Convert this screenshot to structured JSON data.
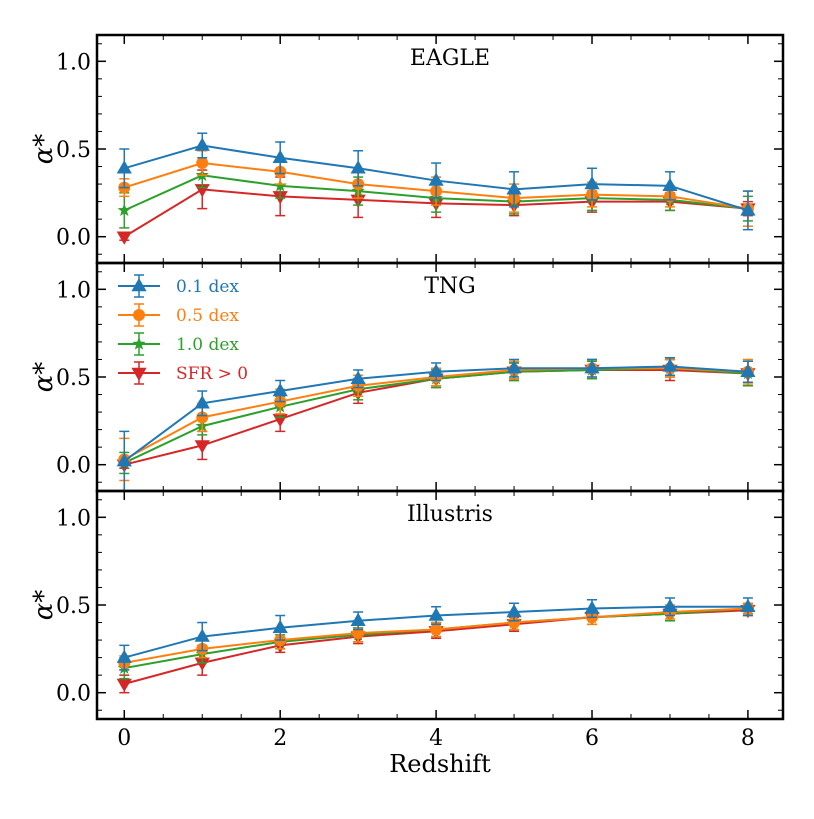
{
  "chart_data": {
    "type": "line",
    "xlabel": "Redshift",
    "ylabel": "α*",
    "xlim": [
      -0.35,
      8.45
    ],
    "x": [
      0,
      1,
      2,
      3,
      4,
      5,
      6,
      7,
      8
    ],
    "xticks": [
      0,
      2,
      4,
      6,
      8
    ],
    "xtick_labels": [
      "0",
      "2",
      "4",
      "6",
      "8"
    ],
    "yticks": [
      0.0,
      0.5,
      1.0
    ],
    "ytick_labels": [
      "0.0",
      "0.5",
      "1.0"
    ],
    "legend": {
      "placement": "upper-left of middle panel"
    },
    "series_styles": [
      {
        "name": "0.1 dex",
        "color": "#1f77b4",
        "marker": "triangle-up"
      },
      {
        "name": "0.5 dex",
        "color": "#ff7f0e",
        "marker": "circle"
      },
      {
        "name": "1.0 dex",
        "color": "#2ca02c",
        "marker": "star"
      },
      {
        "name": "SFR > 0",
        "color": "#d62728",
        "marker": "triangle-down"
      }
    ],
    "panels": [
      {
        "title": "EAGLE",
        "ylim": [
          -0.15,
          1.15
        ],
        "series": [
          {
            "name": "0.1 dex",
            "values": [
              0.39,
              0.52,
              0.45,
              0.39,
              0.32,
              0.27,
              0.3,
              0.29,
              0.15
            ],
            "errors": [
              0.11,
              0.07,
              0.09,
              0.1,
              0.1,
              0.1,
              0.09,
              0.08,
              0.11
            ]
          },
          {
            "name": "0.5 dex",
            "values": [
              0.28,
              0.42,
              0.37,
              0.3,
              0.26,
              0.22,
              0.24,
              0.23,
              0.16
            ],
            "errors": [
              0.05,
              0.07,
              0.07,
              0.08,
              0.08,
              0.08,
              0.07,
              0.06,
              0.1
            ]
          },
          {
            "name": "1.0 dex",
            "values": [
              0.15,
              0.35,
              0.29,
              0.26,
              0.22,
              0.2,
              0.22,
              0.21,
              0.16
            ],
            "errors": [
              0.1,
              0.07,
              0.07,
              0.08,
              0.08,
              0.07,
              0.07,
              0.06,
              0.07
            ]
          },
          {
            "name": "SFR > 0",
            "values": [
              0.0,
              0.27,
              0.23,
              0.21,
              0.19,
              0.18,
              0.2,
              0.2,
              0.16
            ],
            "errors": [
              0.02,
              0.11,
              0.11,
              0.1,
              0.08,
              0.06,
              0.06,
              0.05,
              0.04
            ]
          }
        ]
      },
      {
        "title": "TNG",
        "ylim": [
          -0.15,
          1.15
        ],
        "series": [
          {
            "name": "0.1 dex",
            "values": [
              0.02,
              0.35,
              0.42,
              0.49,
              0.53,
              0.55,
              0.55,
              0.56,
              0.53
            ],
            "errors": [
              0.17,
              0.07,
              0.06,
              0.05,
              0.05,
              0.05,
              0.05,
              0.05,
              0.06
            ]
          },
          {
            "name": "0.5 dex",
            "values": [
              0.03,
              0.27,
              0.36,
              0.45,
              0.5,
              0.54,
              0.55,
              0.55,
              0.53
            ],
            "errors": [
              0.12,
              0.08,
              0.07,
              0.06,
              0.05,
              0.05,
              0.05,
              0.05,
              0.07
            ]
          },
          {
            "name": "1.0 dex",
            "values": [
              0.01,
              0.22,
              0.33,
              0.43,
              0.49,
              0.53,
              0.54,
              0.55,
              0.52
            ],
            "errors": [
              0.06,
              0.05,
              0.06,
              0.06,
              0.05,
              0.05,
              0.05,
              0.05,
              0.07
            ]
          },
          {
            "name": "SFR > 0",
            "values": [
              0.0,
              0.11,
              0.26,
              0.41,
              0.49,
              0.53,
              0.54,
              0.54,
              0.52
            ],
            "errors": [
              0.02,
              0.08,
              0.07,
              0.06,
              0.05,
              0.05,
              0.05,
              0.06,
              0.07
            ]
          }
        ]
      },
      {
        "title": "Illustris",
        "ylim": [
          -0.15,
          1.15
        ],
        "series": [
          {
            "name": "0.1 dex",
            "values": [
              0.2,
              0.32,
              0.37,
              0.41,
              0.44,
              0.46,
              0.48,
              0.49,
              0.49
            ],
            "errors": [
              0.07,
              0.08,
              0.07,
              0.05,
              0.05,
              0.05,
              0.05,
              0.05,
              0.05
            ]
          },
          {
            "name": "0.5 dex",
            "values": [
              0.17,
              0.25,
              0.3,
              0.34,
              0.36,
              0.4,
              0.43,
              0.46,
              0.48
            ],
            "errors": [
              0.04,
              0.05,
              0.05,
              0.05,
              0.04,
              0.04,
              0.04,
              0.04,
              0.03
            ]
          },
          {
            "name": "1.0 dex",
            "values": [
              0.14,
              0.22,
              0.29,
              0.33,
              0.36,
              0.4,
              0.43,
              0.45,
              0.48
            ],
            "errors": [
              0.06,
              0.05,
              0.04,
              0.04,
              0.04,
              0.04,
              0.04,
              0.04,
              0.03
            ]
          },
          {
            "name": "SFR > 0",
            "values": [
              0.05,
              0.17,
              0.27,
              0.32,
              0.35,
              0.39,
              0.43,
              0.45,
              0.47
            ],
            "errors": [
              0.05,
              0.07,
              0.04,
              0.04,
              0.04,
              0.04,
              0.04,
              0.04,
              0.03
            ]
          }
        ]
      }
    ]
  }
}
